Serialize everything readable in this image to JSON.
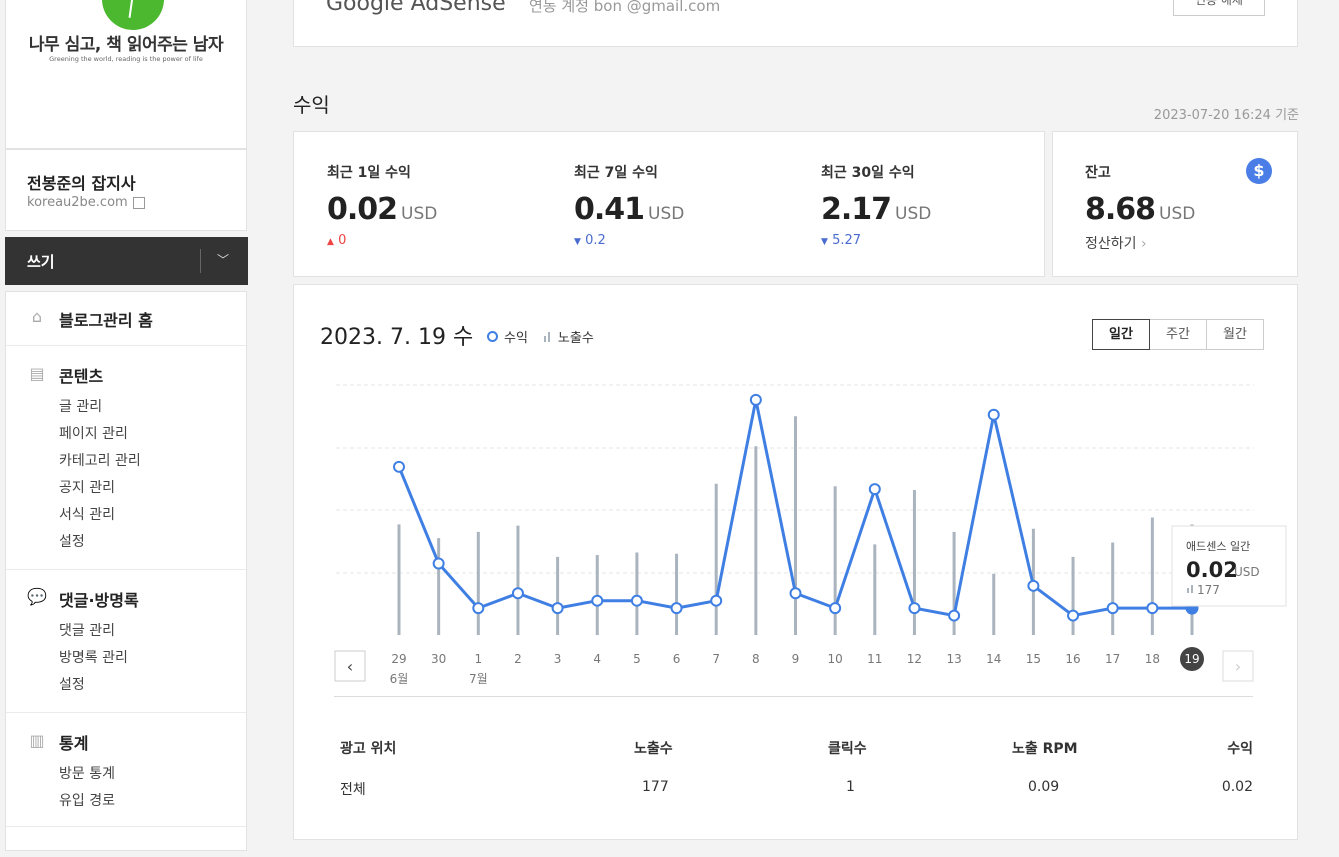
{
  "sidebar": {
    "logo_title": "나무 심고, 책 읽어주는 남자",
    "logo_subtitle": "Greening the world, reading is the power of life",
    "blog_name": "전봉준의 잡지사",
    "blog_url": "koreau2be.com",
    "write_label": "쓰기",
    "home_label": "블로그관리 홈",
    "sections": [
      {
        "title": "콘텐츠",
        "items": [
          "글 관리",
          "페이지 관리",
          "카테고리 관리",
          "공지 관리",
          "서식 관리",
          "설정"
        ]
      },
      {
        "title": "댓글·방명록",
        "items": [
          "댓글 관리",
          "방명록 관리",
          "설정"
        ]
      },
      {
        "title": "통계",
        "items": [
          "방문 통계",
          "유입 경로"
        ]
      }
    ]
  },
  "adsense_bar": {
    "logo_text": "Google AdSense",
    "account_label": "연동 계정",
    "account_value": "bon      @gmail.com",
    "disconnect_label": "연동 해제"
  },
  "revenue": {
    "title": "수익",
    "as_of": "2023-07-20 16:24 기준",
    "stats": [
      {
        "label": "최근 1일 수익",
        "value": "0.02",
        "unit": "USD",
        "change": "0",
        "direction": "up"
      },
      {
        "label": "최근 7일 수익",
        "value": "0.41",
        "unit": "USD",
        "change": "0.2",
        "direction": "down"
      },
      {
        "label": "최근 30일 수익",
        "value": "2.17",
        "unit": "USD",
        "change": "5.27",
        "direction": "down"
      }
    ],
    "balance": {
      "label": "잔고",
      "value": "8.68",
      "unit": "USD",
      "settle_label": "정산하기"
    }
  },
  "chart_panel": {
    "date_label": "2023. 7. 19 수",
    "legend_revenue": "수익",
    "legend_impressions": "노출수",
    "periods": [
      "일간",
      "주간",
      "월간"
    ],
    "active_period": "일간",
    "tooltip": {
      "title": "애드센스 일간",
      "value": "0.02",
      "unit": "USD",
      "impressions": "177"
    }
  },
  "chart_data": {
    "type": "line",
    "x": [
      "29",
      "30",
      "1",
      "2",
      "3",
      "4",
      "5",
      "6",
      "7",
      "8",
      "9",
      "10",
      "11",
      "12",
      "13",
      "14",
      "15",
      "16",
      "17",
      "18",
      "19"
    ],
    "month_labels": [
      {
        "index": 0,
        "label": "6월"
      },
      {
        "index": 2,
        "label": "7월"
      }
    ],
    "highlight_index": 20,
    "series": [
      {
        "name": "수익",
        "type": "line",
        "color": "#3f7fe3",
        "values": [
          0.21,
          0.08,
          0.02,
          0.04,
          0.02,
          0.03,
          0.03,
          0.02,
          0.03,
          0.3,
          0.04,
          0.02,
          0.18,
          0.02,
          0.01,
          0.28,
          0.05,
          0.01,
          0.02,
          0.02,
          0.02
        ]
      },
      {
        "name": "노출수",
        "type": "bar",
        "color": "#aab4be",
        "values": [
          177,
          155,
          165,
          175,
          125,
          128,
          132,
          130,
          242,
          302,
          350,
          238,
          145,
          232,
          165,
          98,
          170,
          125,
          148,
          188,
          177
        ]
      }
    ],
    "grid": true
  },
  "table": {
    "headers": [
      "광고 위치",
      "노출수",
      "클릭수",
      "노출 RPM",
      "수익"
    ],
    "rows": [
      [
        "전체",
        "177",
        "1",
        "0.09",
        "0.02"
      ]
    ]
  },
  "colors": {
    "accent": "#3f7fe3",
    "bar": "#aab4be",
    "dark_button": "#333333"
  }
}
